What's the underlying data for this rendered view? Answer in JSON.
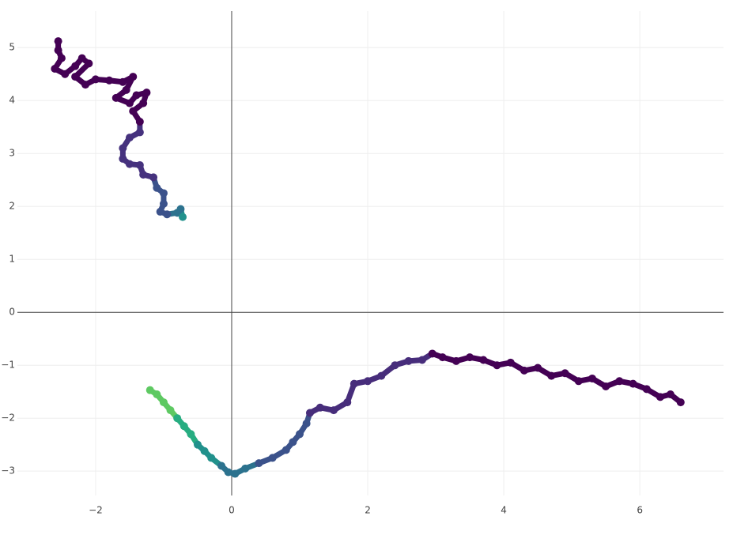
{
  "chart_data": {
    "type": "scatter",
    "xlim": [
      -3.15,
      7.23
    ],
    "ylim": [
      -3.46,
      5.69
    ],
    "xticks": [
      {
        "value": -2,
        "label": "−2"
      },
      0,
      2,
      4,
      6
    ],
    "yticks": [
      {
        "value": -3,
        "label": "−3"
      },
      {
        "value": -2,
        "label": "−2"
      },
      {
        "value": -1,
        "label": "−1"
      },
      0,
      1,
      2,
      3,
      4,
      5
    ],
    "grid": true,
    "zeroline": true,
    "series": [
      {
        "x": [
          -2.55,
          -2.55,
          -2.5,
          -2.6,
          -2.45,
          -2.3,
          -2.2,
          -2.1,
          -2.3,
          -2.15,
          -2.0,
          -1.8,
          -1.6,
          -1.45,
          -1.55,
          -1.7,
          -1.5,
          -1.4,
          -1.25,
          -1.3,
          -1.45,
          -1.35,
          -1.35,
          -1.5,
          -1.6,
          -1.6,
          -1.5,
          -1.35,
          -1.3,
          -1.15,
          -1.1,
          -1.0,
          -1.0,
          -1.05,
          -0.95,
          -0.8,
          -0.75,
          -0.72
        ],
        "y": [
          5.12,
          4.95,
          4.8,
          4.6,
          4.5,
          4.65,
          4.8,
          4.7,
          4.45,
          4.3,
          4.4,
          4.38,
          4.35,
          4.45,
          4.2,
          4.05,
          3.95,
          4.1,
          4.15,
          3.95,
          3.8,
          3.6,
          3.4,
          3.3,
          3.1,
          2.9,
          2.8,
          2.78,
          2.6,
          2.55,
          2.35,
          2.25,
          2.05,
          1.9,
          1.85,
          1.88,
          1.95,
          1.8
        ],
        "colors": [
          "#440154",
          "#440154",
          "#440154",
          "#440154",
          "#440154",
          "#440154",
          "#440154",
          "#440154",
          "#440154",
          "#440154",
          "#440154",
          "#440154",
          "#440154",
          "#440154",
          "#440154",
          "#440154",
          "#440154",
          "#440154",
          "#440154",
          "#440154",
          "#440154",
          "#440154",
          "#46327e",
          "#46327e",
          "#46327e",
          "#46327e",
          "#46327e",
          "#46327e",
          "#46327e",
          "#46327e",
          "#3b528b",
          "#3b528b",
          "#3b528b",
          "#3b528b",
          "#3b528b",
          "#2c728e",
          "#2c728e",
          "#21918c"
        ]
      },
      {
        "x": [
          6.6,
          6.45,
          6.3,
          6.1,
          5.9,
          5.7,
          5.5,
          5.3,
          5.1,
          4.9,
          4.7,
          4.5,
          4.3,
          4.1,
          3.9,
          3.7,
          3.5,
          3.3,
          3.1,
          2.95,
          2.8,
          2.6,
          2.4,
          2.2,
          2.0,
          1.8,
          1.7,
          1.5,
          1.3,
          1.15,
          1.1,
          1.0,
          0.9,
          0.8,
          0.6,
          0.4,
          0.2,
          0.05,
          -0.05,
          -0.15,
          -0.3,
          -0.4,
          -0.5,
          -0.6,
          -0.7,
          -0.8,
          -0.9,
          -1.0,
          -1.1,
          -1.2
        ],
        "y": [
          -1.7,
          -1.55,
          -1.6,
          -1.45,
          -1.35,
          -1.3,
          -1.4,
          -1.25,
          -1.3,
          -1.15,
          -1.2,
          -1.05,
          -1.1,
          -0.95,
          -1.0,
          -0.9,
          -0.85,
          -0.92,
          -0.85,
          -0.78,
          -0.9,
          -0.92,
          -1.0,
          -1.2,
          -1.3,
          -1.35,
          -1.7,
          -1.85,
          -1.8,
          -1.9,
          -2.1,
          -2.3,
          -2.45,
          -2.6,
          -2.75,
          -2.85,
          -2.95,
          -3.05,
          -3.02,
          -2.9,
          -2.75,
          -2.62,
          -2.5,
          -2.3,
          -2.15,
          -2.0,
          -1.85,
          -1.7,
          -1.55,
          -1.47
        ],
        "colors": [
          "#440154",
          "#440154",
          "#440154",
          "#440154",
          "#440154",
          "#440154",
          "#440154",
          "#440154",
          "#440154",
          "#440154",
          "#440154",
          "#440154",
          "#440154",
          "#440154",
          "#440154",
          "#440154",
          "#440154",
          "#440154",
          "#440154",
          "#440154",
          "#472d7b",
          "#472d7b",
          "#472d7b",
          "#472d7b",
          "#472d7b",
          "#472d7b",
          "#472d7b",
          "#472d7b",
          "#472d7b",
          "#472d7b",
          "#3b528b",
          "#3b528b",
          "#3b528b",
          "#3b528b",
          "#3b528b",
          "#3b528b",
          "#2c728e",
          "#2c728e",
          "#2c728e",
          "#2c728e",
          "#21918c",
          "#21918c",
          "#21918c",
          "#27ad81",
          "#27ad81",
          "#27ad81",
          "#5ec962",
          "#5ec962",
          "#5ec962",
          "#5ec962"
        ]
      }
    ]
  }
}
